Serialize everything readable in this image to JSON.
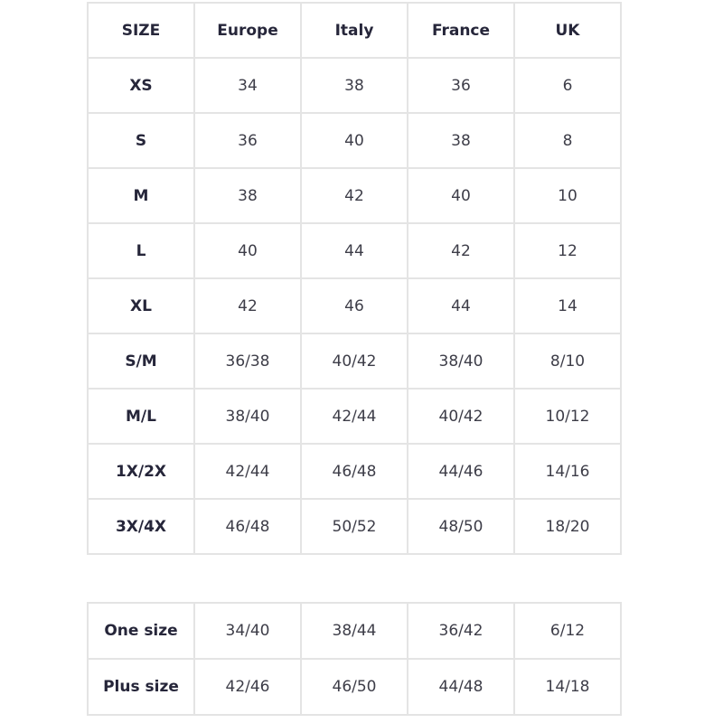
{
  "size_table": {
    "headers": [
      "SIZE",
      "Europe",
      "Italy",
      "France",
      "UK"
    ],
    "rows": [
      [
        "XS",
        "34",
        "38",
        "36",
        "6"
      ],
      [
        "S",
        "36",
        "40",
        "38",
        "8"
      ],
      [
        "M",
        "38",
        "42",
        "40",
        "10"
      ],
      [
        "L",
        "40",
        "44",
        "42",
        "12"
      ],
      [
        "XL",
        "42",
        "46",
        "44",
        "14"
      ],
      [
        "S/M",
        "36/38",
        "40/42",
        "38/40",
        "8/10"
      ],
      [
        "M/L",
        "38/40",
        "42/44",
        "40/42",
        "10/12"
      ],
      [
        "1X/2X",
        "42/44",
        "46/48",
        "44/46",
        "14/16"
      ],
      [
        "3X/4X",
        "46/48",
        "50/52",
        "48/50",
        "18/20"
      ]
    ]
  },
  "extra_table": {
    "rows": [
      [
        "One size",
        "34/40",
        "38/44",
        "36/42",
        "6/12"
      ],
      [
        "Plus size",
        "42/46",
        "46/50",
        "44/48",
        "14/18"
      ]
    ]
  },
  "colors": {
    "border": "#e4e4e4",
    "text": "#3d3d48",
    "header_text": "#26263a"
  }
}
